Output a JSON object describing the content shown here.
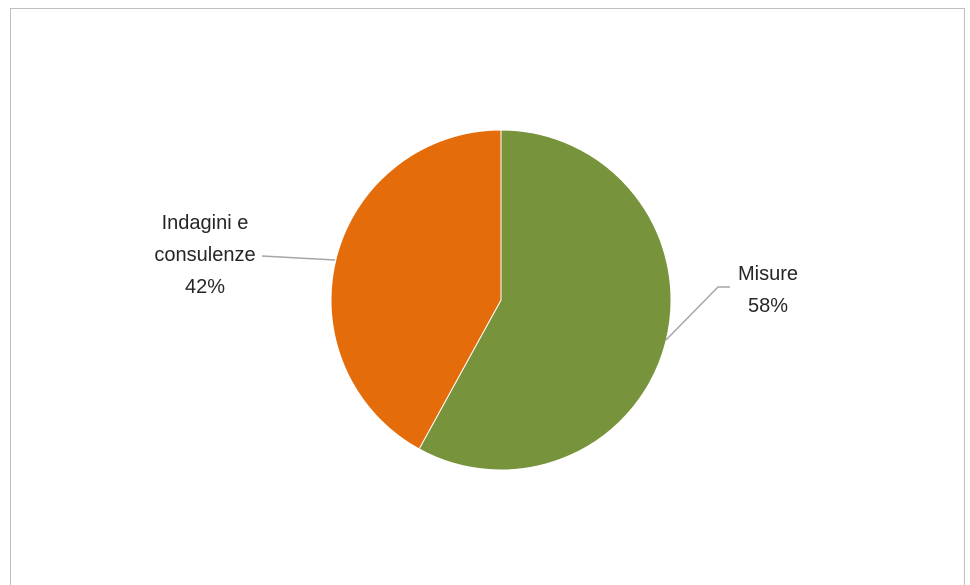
{
  "chart_data": {
    "type": "pie",
    "slices": [
      {
        "label": "Misure",
        "value": 58,
        "percent_label": "58%",
        "color": "#77933c"
      },
      {
        "label_lines": [
          "Indagini e",
          "consulenze"
        ],
        "value": 42,
        "percent_label": "42%",
        "color": "#e46c0a"
      }
    ],
    "start": "12 o'clock",
    "direction": "clockwise",
    "legend": "none",
    "data_labels": "outside with leader lines"
  }
}
